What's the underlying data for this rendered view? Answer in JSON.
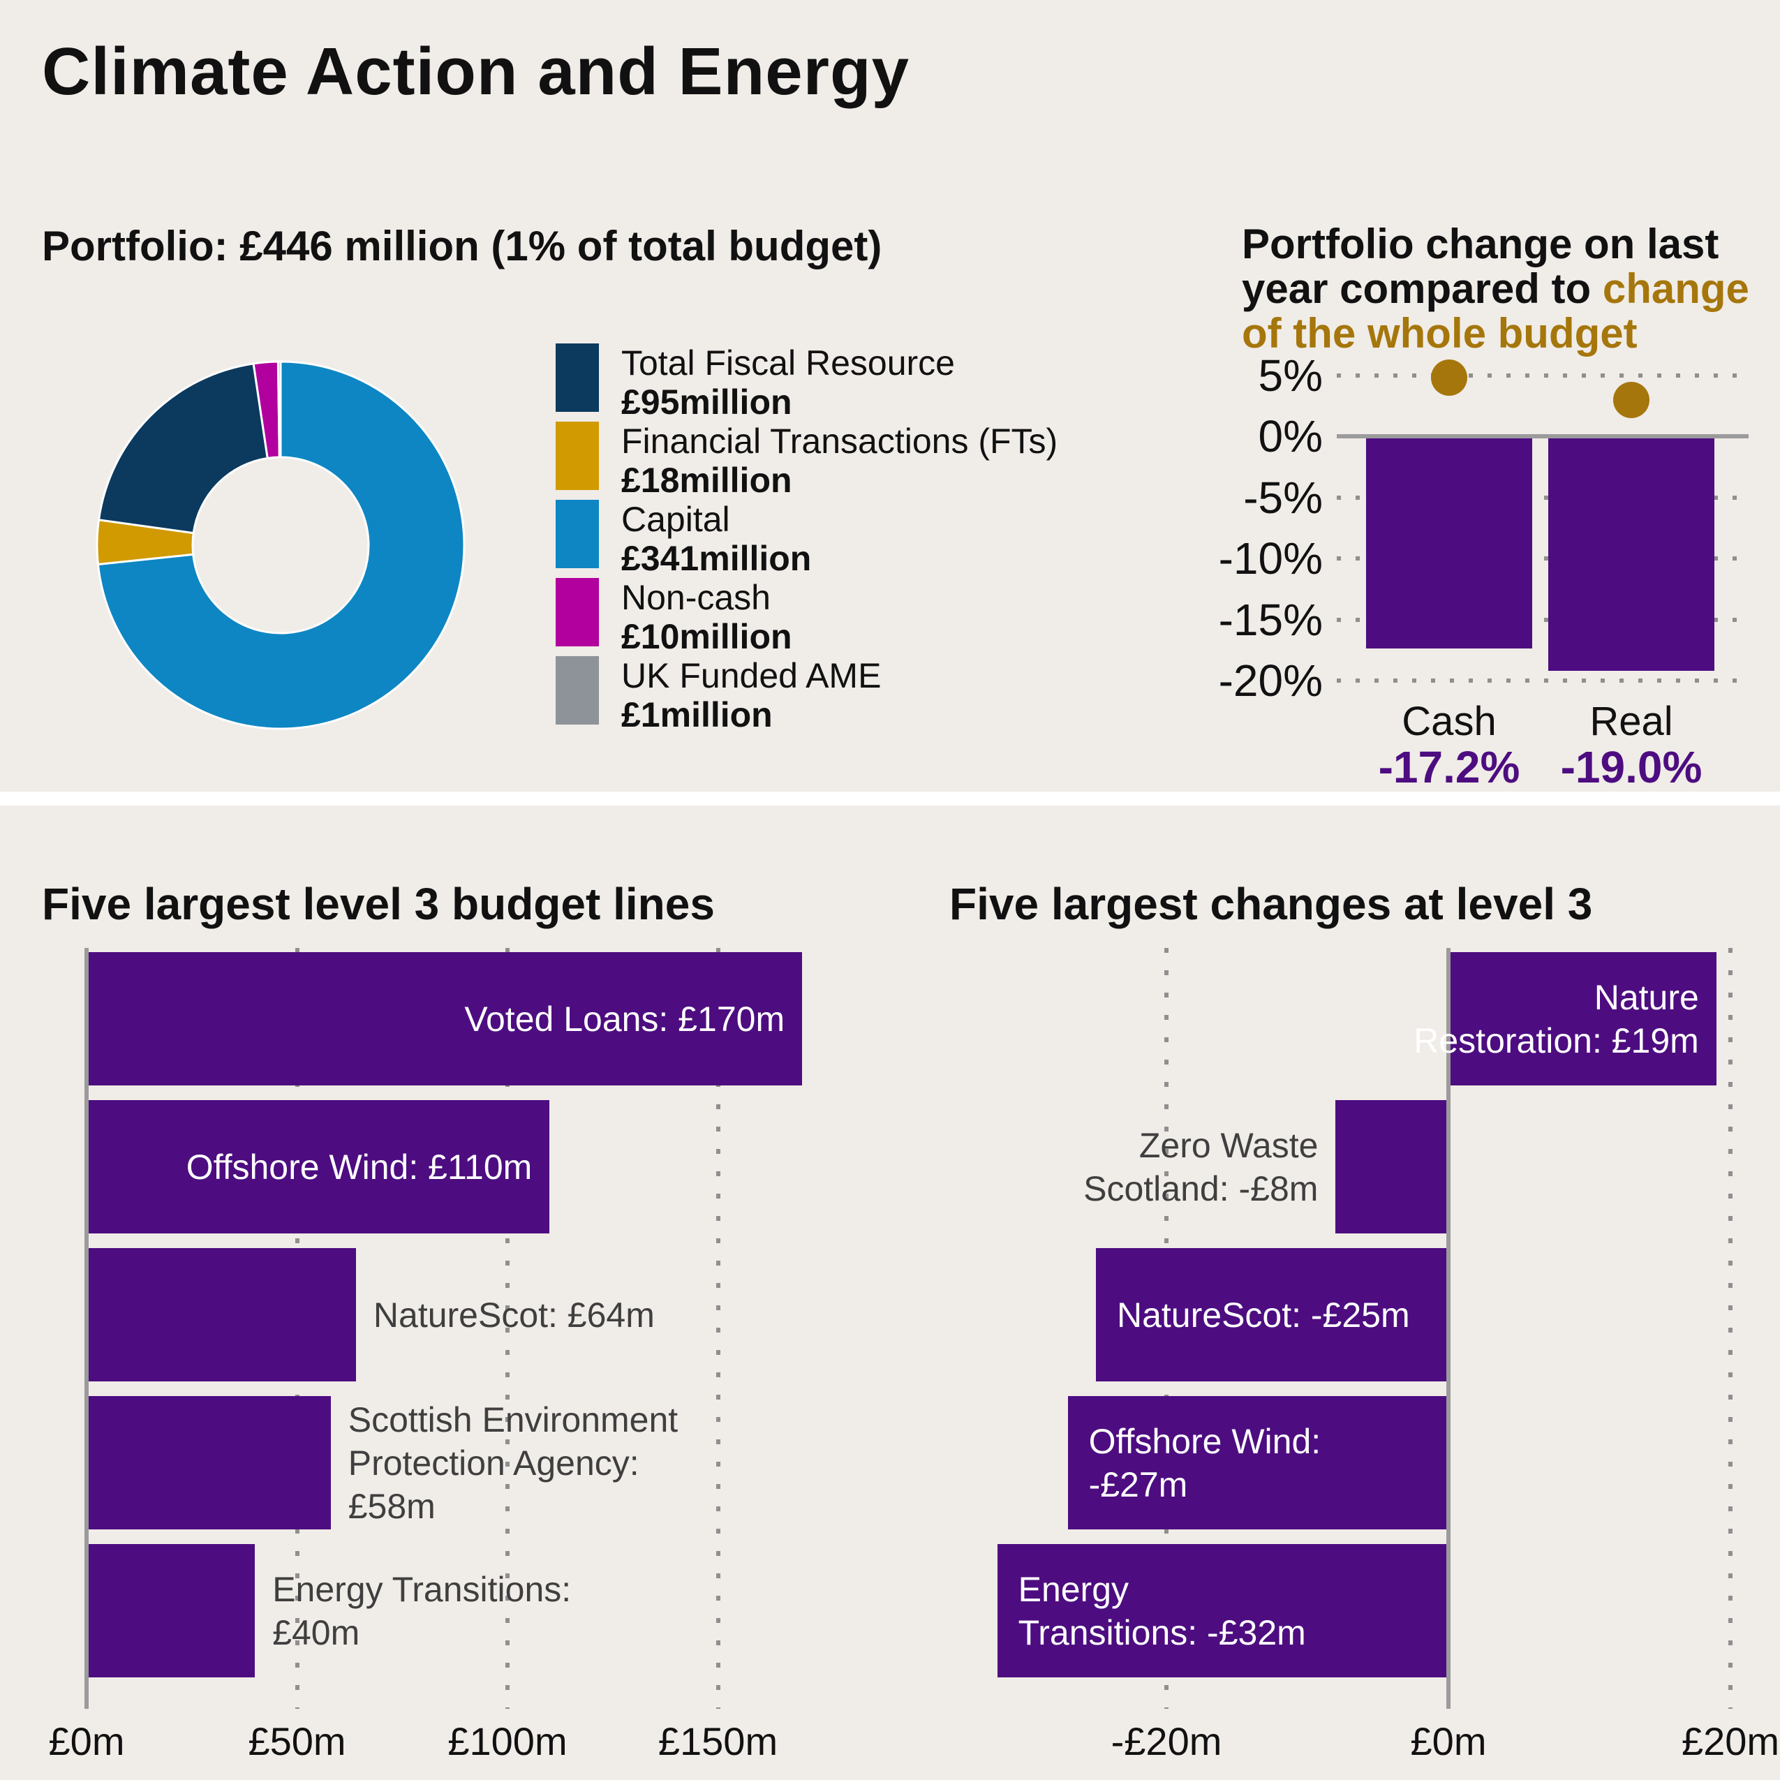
{
  "page_title": "Climate Action and Energy",
  "colors": {
    "background": "#f0ece8",
    "purple": "#4d0d80",
    "gold": "#a5760b",
    "navy": "#0c3a5e",
    "amber": "#d09a00",
    "blue": "#0e86c4",
    "magenta": "#b2009e",
    "grey": "#8d9399",
    "grid_grey": "#8f8f8f",
    "outside_label_grey": "#3f3f3f",
    "white": "#ffffff"
  },
  "chart_data": [
    {
      "id": "portfolio_donut",
      "type": "pie",
      "donut": true,
      "title": "Portfolio: £446 million (1% of total budget)",
      "slices": [
        {
          "label": "Total Fiscal Resource",
          "value": 95,
          "value_label": "£95million",
          "color": "#0c3a5e"
        },
        {
          "label": "Financial Transactions (FTs)",
          "value": 18,
          "value_label": "£18million",
          "color": "#d09a00"
        },
        {
          "label": "Capital",
          "value": 341,
          "value_label": "£341million",
          "color": "#0e86c4"
        },
        {
          "label": "Non-cash",
          "value": 10,
          "value_label": "£10million",
          "color": "#b2009e"
        },
        {
          "label": "UK Funded AME",
          "value": 1,
          "value_label": "£1million",
          "color": "#8d9399"
        }
      ],
      "clockwise_draw_order": [
        2,
        1,
        0,
        3,
        4
      ],
      "legend_position": "right"
    },
    {
      "id": "portfolio_change",
      "type": "bar",
      "title_lines": [
        [
          {
            "text": "Portfolio change on last",
            "color": "#111111"
          }
        ],
        [
          {
            "text": "year compared to ",
            "color": "#111111"
          },
          {
            "text": "change",
            "color": "#a5760b"
          }
        ],
        [
          {
            "text": "of the whole budget",
            "color": "#a5760b"
          }
        ]
      ],
      "categories": [
        "Cash",
        "Real"
      ],
      "series": [
        {
          "name": "Portfolio change",
          "type": "bar",
          "values": [
            -17.2,
            -19.0
          ],
          "color": "#4d0d80"
        },
        {
          "name": "Change of the whole budget",
          "type": "dot",
          "values": [
            4.8,
            3.0
          ],
          "color": "#a5760b"
        }
      ],
      "bar_value_labels": [
        "-17.2%",
        "-19.0%"
      ],
      "y_ticks": [
        {
          "label": "5%",
          "value": 5
        },
        {
          "label": "0%",
          "value": 0
        },
        {
          "label": "-5%",
          "value": -5
        },
        {
          "label": "-10%",
          "value": -10
        },
        {
          "label": "-15%",
          "value": -15
        },
        {
          "label": "-20%",
          "value": -20
        }
      ],
      "ylim": [
        -20,
        5
      ],
      "grid": "dotted-horizontal"
    },
    {
      "id": "largest_budget_lines",
      "type": "bar",
      "orientation": "horizontal",
      "title": "Five largest level 3 budget lines",
      "bars": [
        {
          "name": "Voted Loans",
          "value": 170,
          "label_lines": [
            "Voted Loans: £170m"
          ],
          "label_inside": true
        },
        {
          "name": "Offshore Wind",
          "value": 110,
          "label_lines": [
            "Offshore Wind: £110m"
          ],
          "label_inside": true
        },
        {
          "name": "NatureScot",
          "value": 64,
          "label_lines": [
            "NatureScot: £64m"
          ],
          "label_inside": false
        },
        {
          "name": "Scottish Environment Protection Agency",
          "value": 58,
          "label_lines": [
            "Scottish Environment",
            "Protection Agency:",
            "£58m"
          ],
          "label_inside": false
        },
        {
          "name": "Energy Transitions",
          "value": 40,
          "label_lines": [
            "Energy Transitions:",
            "£40m"
          ],
          "label_inside": false
        }
      ],
      "bar_color": "#4d0d80",
      "x_ticks": [
        {
          "label": "£0m",
          "value": 0
        },
        {
          "label": "£50m",
          "value": 50
        },
        {
          "label": "£100m",
          "value": 100
        },
        {
          "label": "£150m",
          "value": 150
        }
      ],
      "xlim": [
        0,
        172
      ],
      "grid": "dotted-vertical"
    },
    {
      "id": "largest_changes",
      "type": "bar",
      "orientation": "horizontal",
      "title": "Five largest changes at level 3",
      "bars": [
        {
          "name": "Nature Restoration",
          "value": 19,
          "label_lines": [
            "Nature",
            "Restoration: £19m"
          ],
          "label_inside": true,
          "label_align": "right"
        },
        {
          "name": "Zero Waste Scotland",
          "value": -8,
          "label_lines": [
            "Zero Waste",
            "Scotland: -£8m"
          ],
          "label_inside": false,
          "label_align": "right"
        },
        {
          "name": "NatureScot",
          "value": -25,
          "label_lines": [
            "NatureScot: -£25m"
          ],
          "label_inside": true,
          "label_align": "left"
        },
        {
          "name": "Offshore Wind",
          "value": -27,
          "label_lines": [
            "Offshore Wind:",
            "-£27m"
          ],
          "label_inside": true,
          "label_align": "left"
        },
        {
          "name": "Energy Transitions",
          "value": -32,
          "label_lines": [
            "Energy",
            "Transitions: -£32m"
          ],
          "label_inside": true,
          "label_align": "left"
        }
      ],
      "bar_color": "#4d0d80",
      "x_ticks": [
        {
          "label": "-£20m",
          "value": -20
        },
        {
          "label": "£0m",
          "value": 0
        },
        {
          "label": "£20m",
          "value": 20
        }
      ],
      "xlim": [
        -33,
        22
      ],
      "grid": "dotted-vertical"
    }
  ]
}
